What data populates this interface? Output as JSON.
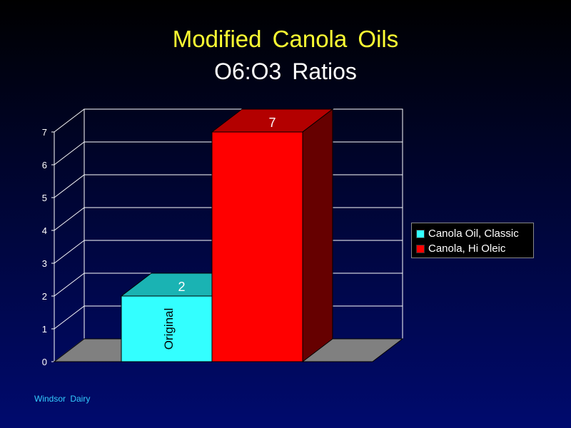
{
  "title": {
    "line1": "Modified  Canola  Oils",
    "line2": "O6:O3  Ratios"
  },
  "footer": {
    "text": "Windsor  Dairy"
  },
  "chart_data": {
    "type": "bar",
    "series": [
      {
        "name": "Canola Oil, Classic",
        "value": 2,
        "label": "2",
        "inner_label": "Original",
        "color": "#33ffff",
        "top_color": "#1ab3b3",
        "side_color": "#138a8a"
      },
      {
        "name": "Canola, Hi Oleic",
        "value": 7,
        "label": "7",
        "color": "#ff0000",
        "top_color": "#b30000",
        "side_color": "#660000"
      }
    ],
    "y_ticks": [
      "0",
      "1",
      "2",
      "3",
      "4",
      "5",
      "6",
      "7"
    ],
    "ylim": [
      0,
      7
    ],
    "grid": true,
    "legend_position": "right",
    "floor_color": "#808080",
    "grid_color": "#ffffff",
    "tick_color": "#ffffff"
  },
  "legend": {
    "items": [
      {
        "label": "Canola Oil, Classic",
        "color": "#33ffff"
      },
      {
        "label": "Canola, Hi Oleic",
        "color": "#ff0000"
      }
    ]
  }
}
